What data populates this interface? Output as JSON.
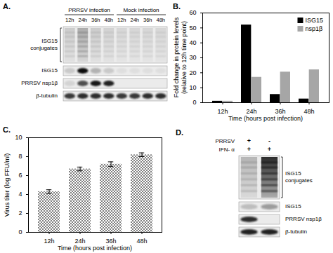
{
  "chart_data": [
    {
      "type": "bar",
      "title": "B.",
      "categories": [
        "12h",
        "24h",
        "36h",
        "48h"
      ],
      "series": [
        {
          "name": "ISG15",
          "color": "#000000",
          "values": [
            1,
            52,
            5.5,
            2.5
          ]
        },
        {
          "name": "nsp1β",
          "color": "#a6a6a6",
          "values": [
            1,
            17,
            20.5,
            22
          ]
        }
      ],
      "ylim": [
        0,
        60
      ],
      "yticks": [
        0,
        10,
        20,
        30,
        40,
        50,
        60
      ],
      "x_label": "Time (hours post infection)",
      "y_label": [
        "Fold change in protein levels",
        "(relative to 12h time point)"
      ],
      "legend": "top-right"
    },
    {
      "type": "bar",
      "title": "C.",
      "categories": [
        "12h",
        "24h",
        "36h",
        "48h"
      ],
      "values": [
        4.3,
        6.7,
        7.2,
        8.2
      ],
      "errors": [
        0.2,
        0.2,
        0.25,
        0.2
      ],
      "color": "#808080",
      "ylim": [
        0,
        10
      ],
      "yticks": [
        0,
        2,
        4,
        6,
        8,
        10
      ],
      "x_label": "Time (hours post infection)",
      "y_label": [
        "Virus titer (log FFU/ml)"
      ]
    }
  ],
  "blots": [
    {
      "title": "A.",
      "groups": [
        {
          "label": "PRRSV infection",
          "lanes": [
            "12h",
            "24h",
            "36h",
            "48h"
          ]
        },
        {
          "label": "Mock infection",
          "lanes": [
            "12h",
            "24h",
            "36h",
            "48h"
          ]
        }
      ],
      "rows": [
        {
          "label": "ISG15 conjugates",
          "kind": "smear",
          "intensity": [
            0.15,
            0.3,
            0.15,
            0.12,
            0.1,
            0.1,
            0.1,
            0.1
          ]
        },
        {
          "label": "ISG15",
          "kind": "band",
          "intensity": [
            0.15,
            1,
            0.25,
            0.15,
            0.05,
            0.05,
            0.05,
            0.05
          ]
        },
        {
          "label": "PRRSV nsp1β",
          "kind": "band",
          "intensity": [
            0.1,
            0.7,
            0.95,
            0.9,
            0,
            0,
            0,
            0
          ]
        },
        {
          "label": "β-tubulin",
          "kind": "band",
          "intensity": [
            0.8,
            0.85,
            0.85,
            0.85,
            0.8,
            0.8,
            0.85,
            0.85
          ]
        }
      ]
    },
    {
      "title": "D.",
      "conditions": [
        {
          "label": "PRRSV",
          "values": [
            "+",
            "-"
          ]
        },
        {
          "label": "IFN- α",
          "values": [
            "+",
            "+"
          ]
        }
      ],
      "rows": [
        {
          "label": "ISG15 conjugates",
          "kind": "smear",
          "intensity": [
            0.25,
            0.9
          ]
        },
        {
          "label": "ISG15",
          "kind": "band",
          "intensity": [
            0.2,
            0.35
          ]
        },
        {
          "label": "PRRSV nsp1β",
          "kind": "band",
          "intensity": [
            0.85,
            0
          ]
        },
        {
          "label": "β-tubulin",
          "kind": "band",
          "intensity": [
            0.9,
            0.9
          ]
        }
      ]
    }
  ]
}
